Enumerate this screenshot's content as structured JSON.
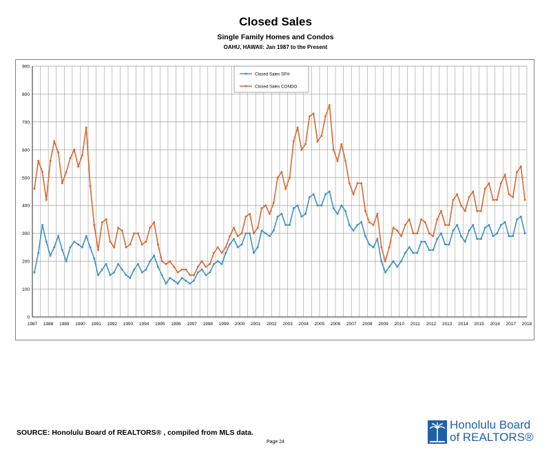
{
  "page": {
    "source": "SOURCE:  Honolulu Board of REALTORS® , compiled from MLS data.",
    "page_number": "Page 24"
  },
  "logo": {
    "line1": "Honolulu Board",
    "line2": "of REALTORS®",
    "color": "#1f5fa8"
  },
  "chart_data": {
    "type": "line",
    "title": "Closed Sales",
    "subtitle": "Single Family Homes and Condos",
    "subtitle2": "OAHU, HAWAII: Jan 1987 to the Present",
    "xlabel": "",
    "ylabel": "",
    "ylim": [
      0,
      900
    ],
    "yticks": [
      0,
      100,
      200,
      300,
      400,
      500,
      600,
      700,
      800,
      900
    ],
    "xlim": [
      1987,
      2018
    ],
    "xticks": [
      "1987",
      "1988",
      "1989",
      "1990",
      "1991",
      "1992",
      "1993",
      "1994",
      "1995",
      "1996",
      "1997",
      "1998",
      "1999",
      "2000",
      "2001",
      "2002",
      "2003",
      "2004",
      "2005",
      "2006",
      "2007",
      "2008",
      "2009",
      "2010",
      "2011",
      "2012",
      "2013",
      "2014",
      "2015",
      "2016",
      "2017",
      "2018"
    ],
    "grid": true,
    "legend_position": "top-center",
    "sample_interval": "quarterly (estimated)",
    "x": [
      "1987 Q1",
      "1987 Q2",
      "1987 Q3",
      "1987 Q4",
      "1988 Q1",
      "1988 Q2",
      "1988 Q3",
      "1988 Q4",
      "1989 Q1",
      "1989 Q2",
      "1989 Q3",
      "1989 Q4",
      "1990 Q1",
      "1990 Q2",
      "1990 Q3",
      "1990 Q4",
      "1991 Q1",
      "1991 Q2",
      "1991 Q3",
      "1991 Q4",
      "1992 Q1",
      "1992 Q2",
      "1992 Q3",
      "1992 Q4",
      "1993 Q1",
      "1993 Q2",
      "1993 Q3",
      "1993 Q4",
      "1994 Q1",
      "1994 Q2",
      "1994 Q3",
      "1994 Q4",
      "1995 Q1",
      "1995 Q2",
      "1995 Q3",
      "1995 Q4",
      "1996 Q1",
      "1996 Q2",
      "1996 Q3",
      "1996 Q4",
      "1997 Q1",
      "1997 Q2",
      "1997 Q3",
      "1997 Q4",
      "1998 Q1",
      "1998 Q2",
      "1998 Q3",
      "1998 Q4",
      "1999 Q1",
      "1999 Q2",
      "1999 Q3",
      "1999 Q4",
      "2000 Q1",
      "2000 Q2",
      "2000 Q3",
      "2000 Q4",
      "2001 Q1",
      "2001 Q2",
      "2001 Q3",
      "2001 Q4",
      "2002 Q1",
      "2002 Q2",
      "2002 Q3",
      "2002 Q4",
      "2003 Q1",
      "2003 Q2",
      "2003 Q3",
      "2003 Q4",
      "2004 Q1",
      "2004 Q2",
      "2004 Q3",
      "2004 Q4",
      "2005 Q1",
      "2005 Q2",
      "2005 Q3",
      "2005 Q4",
      "2006 Q1",
      "2006 Q2",
      "2006 Q3",
      "2006 Q4",
      "2007 Q1",
      "2007 Q2",
      "2007 Q3",
      "2007 Q4",
      "2008 Q1",
      "2008 Q2",
      "2008 Q3",
      "2008 Q4",
      "2009 Q1",
      "2009 Q2",
      "2009 Q3",
      "2009 Q4",
      "2010 Q1",
      "2010 Q2",
      "2010 Q3",
      "2010 Q4",
      "2011 Q1",
      "2011 Q2",
      "2011 Q3",
      "2011 Q4",
      "2012 Q1",
      "2012 Q2",
      "2012 Q3",
      "2012 Q4",
      "2013 Q1",
      "2013 Q2",
      "2013 Q3",
      "2013 Q4",
      "2014 Q1",
      "2014 Q2",
      "2014 Q3",
      "2014 Q4",
      "2015 Q1",
      "2015 Q2",
      "2015 Q3",
      "2015 Q4",
      "2016 Q1",
      "2016 Q2",
      "2016 Q3",
      "2016 Q4",
      "2017 Q1",
      "2017 Q2",
      "2017 Q3",
      "2017 Q4"
    ],
    "series": [
      {
        "name": "Closed Sales SFH",
        "color": "#3b8fc4",
        "values": [
          160,
          230,
          330,
          270,
          220,
          250,
          290,
          240,
          200,
          250,
          270,
          260,
          250,
          290,
          250,
          210,
          150,
          170,
          190,
          150,
          160,
          190,
          170,
          150,
          140,
          170,
          190,
          160,
          170,
          200,
          220,
          180,
          150,
          120,
          140,
          130,
          120,
          140,
          130,
          120,
          130,
          160,
          170,
          150,
          160,
          190,
          200,
          190,
          230,
          260,
          280,
          250,
          260,
          300,
          300,
          230,
          250,
          310,
          300,
          290,
          310,
          360,
          370,
          330,
          330,
          390,
          400,
          360,
          370,
          430,
          440,
          400,
          400,
          440,
          450,
          390,
          370,
          400,
          380,
          330,
          310,
          330,
          340,
          290,
          260,
          250,
          280,
          200,
          160,
          180,
          200,
          180,
          200,
          230,
          250,
          230,
          230,
          270,
          270,
          240,
          240,
          280,
          300,
          260,
          260,
          310,
          330,
          290,
          270,
          310,
          330,
          280,
          280,
          320,
          330,
          290,
          300,
          330,
          340,
          290,
          290,
          350,
          360,
          300
        ]
      },
      {
        "name": "Closed Sales CONDO",
        "color": "#d9662f",
        "values": [
          460,
          560,
          520,
          420,
          560,
          630,
          590,
          480,
          520,
          570,
          600,
          540,
          580,
          680,
          470,
          330,
          240,
          340,
          350,
          270,
          250,
          320,
          310,
          250,
          260,
          300,
          300,
          260,
          270,
          320,
          340,
          260,
          200,
          190,
          200,
          180,
          160,
          170,
          170,
          150,
          150,
          180,
          200,
          180,
          190,
          230,
          250,
          230,
          250,
          290,
          320,
          290,
          300,
          360,
          370,
          300,
          320,
          390,
          400,
          370,
          410,
          500,
          520,
          460,
          500,
          630,
          680,
          600,
          620,
          720,
          730,
          630,
          650,
          720,
          760,
          600,
          560,
          620,
          560,
          480,
          440,
          480,
          480,
          380,
          340,
          330,
          370,
          250,
          200,
          250,
          320,
          310,
          290,
          330,
          350,
          300,
          300,
          350,
          340,
          300,
          290,
          350,
          380,
          330,
          330,
          420,
          440,
          400,
          380,
          430,
          450,
          380,
          380,
          460,
          480,
          420,
          420,
          480,
          510,
          440,
          430,
          520,
          540,
          420
        ]
      }
    ]
  }
}
